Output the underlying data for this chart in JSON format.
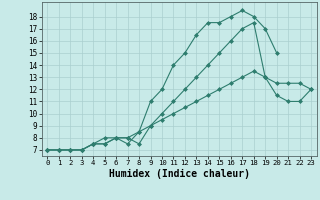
{
  "line1_x": [
    0,
    1,
    2,
    3,
    4,
    5,
    6,
    7,
    8,
    9,
    10,
    11,
    12,
    13,
    14,
    15,
    16,
    17,
    18,
    19,
    20
  ],
  "line1_y": [
    7,
    7,
    7,
    7,
    7.5,
    7.5,
    8,
    7.5,
    8.5,
    11,
    12,
    14,
    15,
    16.5,
    17.5,
    17.5,
    18,
    18.5,
    18,
    17,
    15
  ],
  "line2_x": [
    0,
    1,
    2,
    3,
    4,
    5,
    6,
    7,
    8,
    9,
    10,
    11,
    12,
    13,
    14,
    15,
    16,
    17,
    18,
    19,
    20,
    21,
    22,
    23
  ],
  "line2_y": [
    7,
    7,
    7,
    7,
    7.5,
    8,
    8,
    8,
    7.5,
    9,
    10,
    11,
    12,
    13,
    14,
    15,
    16,
    17,
    17.5,
    13,
    11.5,
    11,
    11,
    12
  ],
  "line3_x": [
    0,
    1,
    2,
    3,
    4,
    5,
    6,
    7,
    8,
    9,
    10,
    11,
    12,
    13,
    14,
    15,
    16,
    17,
    18,
    19,
    20,
    21,
    22,
    23
  ],
  "line3_y": [
    7,
    7,
    7,
    7,
    7.5,
    7.5,
    8,
    8,
    8.5,
    9,
    9.5,
    10,
    10.5,
    11,
    11.5,
    12,
    12.5,
    13,
    13.5,
    13,
    12.5,
    12.5,
    12.5,
    12
  ],
  "color": "#2e7d6e",
  "bg_color": "#c8eae8",
  "grid_color": "#aacfcf",
  "xlabel": "Humidex (Indice chaleur)",
  "xlim": [
    -0.5,
    23.5
  ],
  "ylim": [
    6.5,
    19.2
  ],
  "xticks": [
    0,
    1,
    2,
    3,
    4,
    5,
    6,
    7,
    8,
    9,
    10,
    11,
    12,
    13,
    14,
    15,
    16,
    17,
    18,
    19,
    20,
    21,
    22,
    23
  ],
  "yticks": [
    7,
    8,
    9,
    10,
    11,
    12,
    13,
    14,
    15,
    16,
    17,
    18
  ],
  "marker": "D",
  "markersize": 2.0,
  "linewidth": 0.8,
  "xlabel_fontsize": 7,
  "tick_fontsize": 5.5
}
